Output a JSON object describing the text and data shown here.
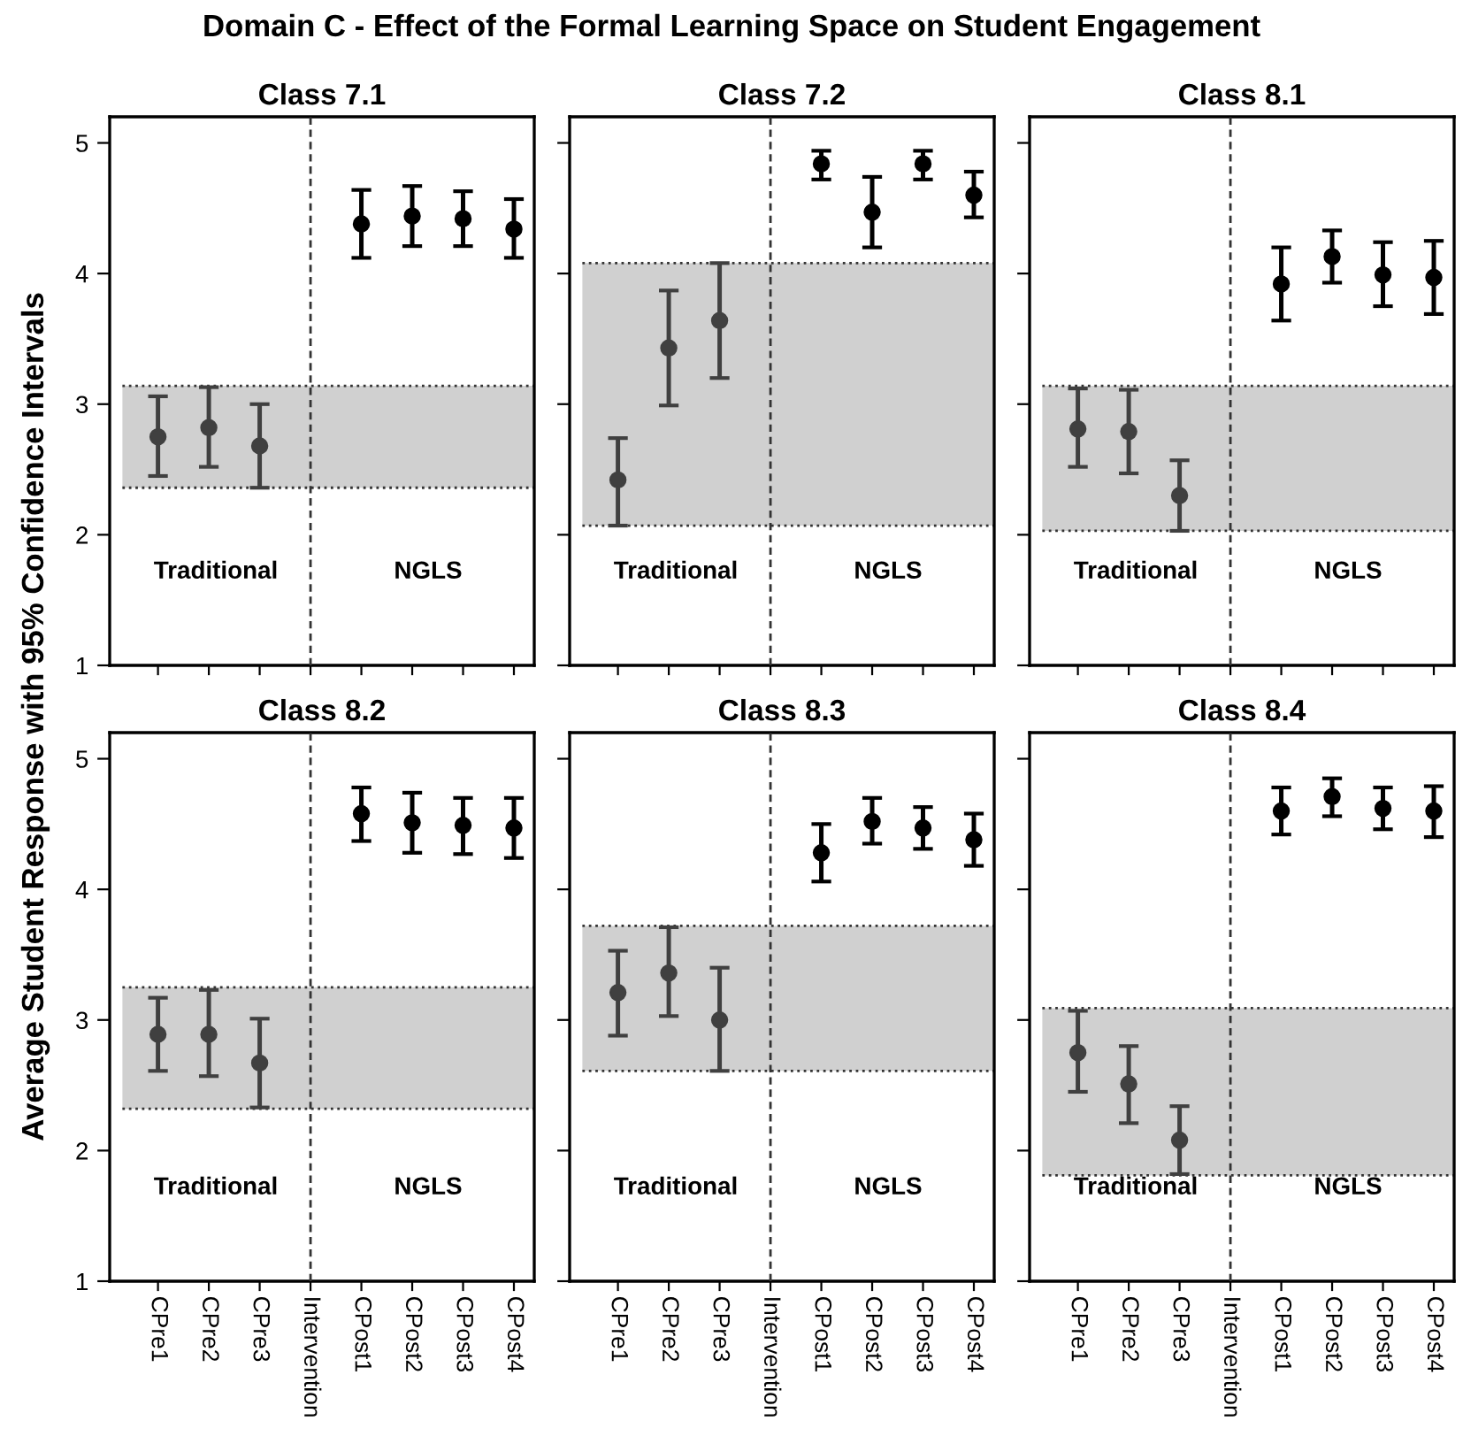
{
  "chart_data": [
    {
      "type": "scatter",
      "title": "Class 7.1",
      "ylabel": "Average Student Response with 95% Confidence Intervals",
      "annotations": [
        "Domain C - Effect of the Formal Learning Space on Student Engagement",
        "Traditional",
        "NGLS"
      ],
      "categories": [
        "CPre1",
        "CPre2",
        "CPre3",
        "Intervention",
        "CPost1",
        "CPost2",
        "CPost3",
        "CPost4"
      ],
      "values": [
        2.75,
        2.82,
        2.68,
        null,
        4.38,
        4.44,
        4.42,
        4.34
      ],
      "errors": [
        [
          2.45,
          3.06
        ],
        [
          2.52,
          3.13
        ],
        [
          2.36,
          3.0
        ],
        null,
        [
          4.12,
          4.64
        ],
        [
          4.21,
          4.67
        ],
        [
          4.21,
          4.63
        ],
        [
          4.12,
          4.57
        ]
      ],
      "colors": [
        "#404040",
        "#404040",
        "#404040",
        null,
        "#000000",
        "#000000",
        "#000000",
        "#000000"
      ],
      "marker": "circle",
      "ylim": [
        1,
        5.2
      ],
      "yticks": [
        1,
        2,
        3,
        4,
        5
      ],
      "bands": [
        {
          "axis": "y",
          "from": 2.36,
          "to": 3.14,
          "color": "#d0d0d0"
        }
      ],
      "ref_lines": [
        {
          "axis": "x",
          "value": "Intervention",
          "line_style": "dashed"
        }
      ],
      "tick_labels": "y",
      "grid": false
    },
    {
      "type": "scatter",
      "title": "Class 7.2",
      "annotations": [
        "Traditional",
        "NGLS"
      ],
      "categories": [
        "CPre1",
        "CPre2",
        "CPre3",
        "Intervention",
        "CPost1",
        "CPost2",
        "CPost3",
        "CPost4"
      ],
      "values": [
        2.42,
        3.43,
        3.64,
        null,
        4.84,
        4.47,
        4.84,
        4.6
      ],
      "errors": [
        [
          2.07,
          2.74
        ],
        [
          2.99,
          3.87
        ],
        [
          3.2,
          4.08
        ],
        null,
        [
          4.72,
          4.94
        ],
        [
          4.2,
          4.74
        ],
        [
          4.72,
          4.94
        ],
        [
          4.43,
          4.78
        ]
      ],
      "colors": [
        "#404040",
        "#404040",
        "#404040",
        null,
        "#000000",
        "#000000",
        "#000000",
        "#000000"
      ],
      "marker": "circle",
      "ylim": [
        1,
        5.2
      ],
      "yticks": [
        1,
        2,
        3,
        4,
        5
      ],
      "bands": [
        {
          "axis": "y",
          "from": 2.07,
          "to": 4.08,
          "color": "#d0d0d0"
        }
      ],
      "ref_lines": [
        {
          "axis": "x",
          "value": "Intervention",
          "line_style": "dashed"
        }
      ],
      "tick_labels": false,
      "grid": false
    },
    {
      "type": "scatter",
      "title": "Class 8.1",
      "annotations": [
        "Traditional",
        "NGLS"
      ],
      "categories": [
        "CPre1",
        "CPre2",
        "CPre3",
        "Intervention",
        "CPost1",
        "CPost2",
        "CPost3",
        "CPost4"
      ],
      "values": [
        2.81,
        2.79,
        2.3,
        null,
        3.92,
        4.13,
        3.99,
        3.97
      ],
      "errors": [
        [
          2.52,
          3.12
        ],
        [
          2.47,
          3.11
        ],
        [
          2.03,
          2.57
        ],
        null,
        [
          3.64,
          4.2
        ],
        [
          3.93,
          4.33
        ],
        [
          3.75,
          4.24
        ],
        [
          3.69,
          4.25
        ]
      ],
      "colors": [
        "#404040",
        "#404040",
        "#404040",
        null,
        "#000000",
        "#000000",
        "#000000",
        "#000000"
      ],
      "marker": "circle",
      "ylim": [
        1,
        5.2
      ],
      "yticks": [
        1,
        2,
        3,
        4,
        5
      ],
      "bands": [
        {
          "axis": "y",
          "from": 2.03,
          "to": 3.14,
          "color": "#d0d0d0"
        }
      ],
      "ref_lines": [
        {
          "axis": "x",
          "value": "Intervention",
          "line_style": "dashed"
        }
      ],
      "tick_labels": false,
      "grid": false
    },
    {
      "type": "scatter",
      "title": "Class 8.2",
      "annotations": [
        "Traditional",
        "NGLS"
      ],
      "categories": [
        "CPre1",
        "CPre2",
        "CPre3",
        "Intervention",
        "CPost1",
        "CPost2",
        "CPost3",
        "CPost4"
      ],
      "values": [
        2.89,
        2.89,
        2.67,
        null,
        4.58,
        4.51,
        4.49,
        4.47
      ],
      "errors": [
        [
          2.61,
          3.17
        ],
        [
          2.57,
          3.23
        ],
        [
          2.33,
          3.01
        ],
        null,
        [
          4.37,
          4.78
        ],
        [
          4.28,
          4.74
        ],
        [
          4.27,
          4.7
        ],
        [
          4.24,
          4.7
        ]
      ],
      "colors": [
        "#404040",
        "#404040",
        "#404040",
        null,
        "#000000",
        "#000000",
        "#000000",
        "#000000"
      ],
      "marker": "circle",
      "ylim": [
        1,
        5.2
      ],
      "yticks": [
        1,
        2,
        3,
        4,
        5
      ],
      "bands": [
        {
          "axis": "y",
          "from": 2.32,
          "to": 3.25,
          "color": "#d0d0d0"
        }
      ],
      "ref_lines": [
        {
          "axis": "x",
          "value": "Intervention",
          "line_style": "dashed"
        }
      ],
      "grid": false
    },
    {
      "type": "scatter",
      "title": "Class 8.3",
      "annotations": [
        "Traditional",
        "NGLS"
      ],
      "categories": [
        "CPre1",
        "CPre2",
        "CPre3",
        "Intervention",
        "CPost1",
        "CPost2",
        "CPost3",
        "CPost4"
      ],
      "values": [
        3.21,
        3.36,
        3.0,
        null,
        4.28,
        4.52,
        4.47,
        4.38
      ],
      "errors": [
        [
          2.88,
          3.53
        ],
        [
          3.03,
          3.71
        ],
        [
          2.61,
          3.4
        ],
        null,
        [
          4.06,
          4.5
        ],
        [
          4.35,
          4.7
        ],
        [
          4.31,
          4.63
        ],
        [
          4.18,
          4.58
        ]
      ],
      "colors": [
        "#404040",
        "#404040",
        "#404040",
        null,
        "#000000",
        "#000000",
        "#000000",
        "#000000"
      ],
      "marker": "circle",
      "ylim": [
        1,
        5.2
      ],
      "yticks": [
        1,
        2,
        3,
        4,
        5
      ],
      "bands": [
        {
          "axis": "y",
          "from": 2.61,
          "to": 3.72,
          "color": "#d0d0d0"
        }
      ],
      "ref_lines": [
        {
          "axis": "x",
          "value": "Intervention",
          "line_style": "dashed"
        }
      ],
      "tick_labels": "x",
      "grid": false
    },
    {
      "type": "scatter",
      "title": "Class 8.4",
      "annotations": [
        "Traditional",
        "NGLS"
      ],
      "categories": [
        "CPre1",
        "CPre2",
        "CPre3",
        "Intervention",
        "CPost1",
        "CPost2",
        "CPost3",
        "CPost4"
      ],
      "values": [
        2.75,
        2.51,
        2.08,
        null,
        4.6,
        4.71,
        4.62,
        4.6
      ],
      "errors": [
        [
          2.45,
          3.07
        ],
        [
          2.21,
          2.8
        ],
        [
          1.82,
          2.34
        ],
        null,
        [
          4.42,
          4.78
        ],
        [
          4.56,
          4.85
        ],
        [
          4.46,
          4.78
        ],
        [
          4.4,
          4.79
        ]
      ],
      "colors": [
        "#404040",
        "#404040",
        "#404040",
        null,
        "#000000",
        "#000000",
        "#000000",
        "#000000"
      ],
      "marker": "circle",
      "ylim": [
        1,
        5.2
      ],
      "yticks": [
        1,
        2,
        3,
        4,
        5
      ],
      "bands": [
        {
          "axis": "y",
          "from": 1.81,
          "to": 3.09,
          "color": "#d0d0d0"
        }
      ],
      "ref_lines": [
        {
          "axis": "x",
          "value": "Intervention",
          "line_style": "dashed"
        }
      ],
      "tick_labels": "x",
      "grid": false
    }
  ]
}
